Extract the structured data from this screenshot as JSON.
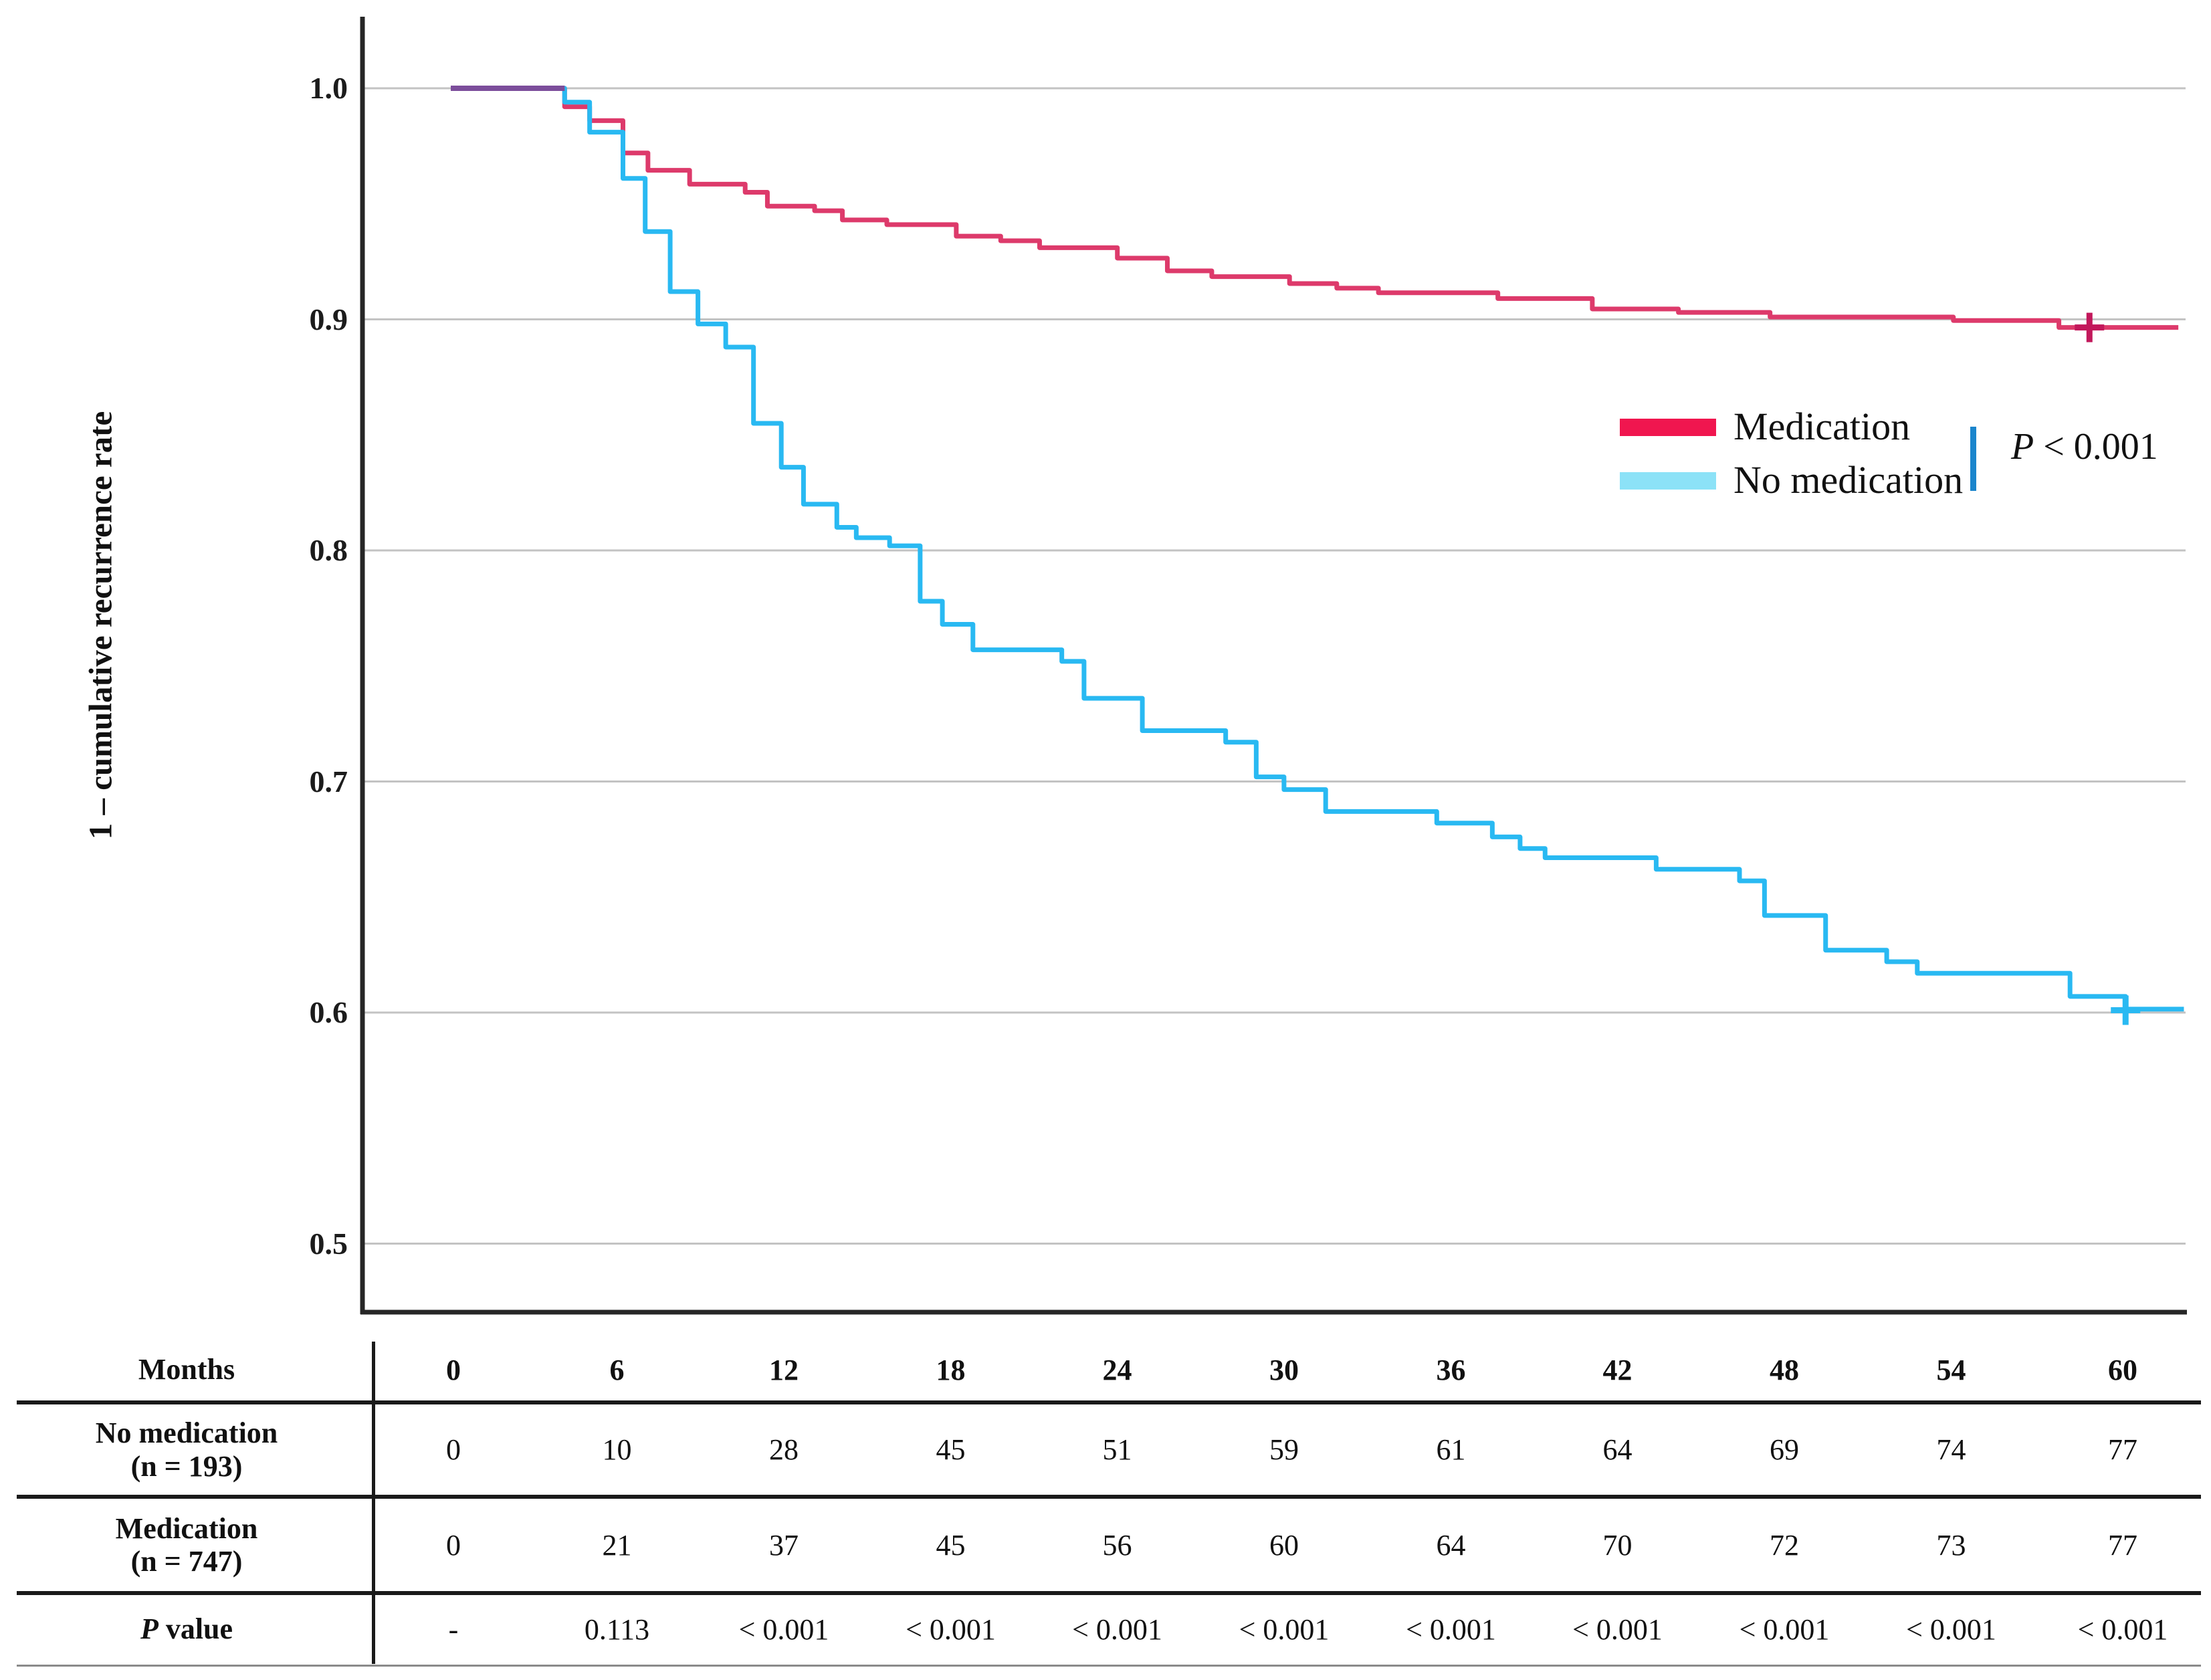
{
  "figure": {
    "y_axis_title": "1 – cumulative recurrence rate",
    "legend": {
      "items": [
        {
          "label": "Medication",
          "swatch_color": "#F0164F"
        },
        {
          "label": "No medication",
          "swatch_color": "#8CE2F7"
        }
      ],
      "bracket_color": "#1A85CC",
      "p_label": "P",
      "p_value": " < 0.001"
    }
  },
  "chart_data": {
    "type": "line",
    "subtype": "kaplan-meier-step",
    "title": "",
    "xlabel": "Months",
    "ylabel": "1 – cumulative recurrence rate",
    "xlim": [
      0,
      62.5
    ],
    "ylim": [
      0.45,
      1.02
    ],
    "yticks": [
      1.0,
      0.9,
      0.8,
      0.7,
      0.6,
      0.5
    ],
    "ytick_labels": [
      "1.0",
      "0.9",
      "0.8",
      "0.7",
      "0.6",
      "0.5"
    ],
    "xticks": [
      0,
      6,
      12,
      18,
      24,
      30,
      36,
      42,
      48,
      54,
      60
    ],
    "grid": "horizontal",
    "gridline_color": "#c3c3c3",
    "axis_color": "#262626",
    "legend_position": "right-middle",
    "p_annotation": "P < 0.001",
    "overlap_segment": {
      "color": "#7C4D9B",
      "from": [
        0,
        1.0
      ],
      "to": [
        4.1,
        1.0
      ]
    },
    "series": [
      {
        "name": "Medication",
        "color": "#DD3A6B",
        "end_month": 62.2,
        "censor_marks": [
          [
            59.0,
            0.8965
          ]
        ],
        "steps": [
          [
            0,
            1.0
          ],
          [
            4.1,
            0.992
          ],
          [
            5.0,
            0.986
          ],
          [
            6.2,
            0.972
          ],
          [
            7.1,
            0.9645
          ],
          [
            8.6,
            0.9585
          ],
          [
            10.6,
            0.955
          ],
          [
            11.4,
            0.949
          ],
          [
            13.1,
            0.947
          ],
          [
            14.1,
            0.943
          ],
          [
            15.7,
            0.941
          ],
          [
            18.2,
            0.936
          ],
          [
            19.8,
            0.934
          ],
          [
            21.2,
            0.931
          ],
          [
            24.0,
            0.9265
          ],
          [
            25.8,
            0.921
          ],
          [
            27.4,
            0.9185
          ],
          [
            30.2,
            0.9155
          ],
          [
            31.9,
            0.9135
          ],
          [
            33.4,
            0.9115
          ],
          [
            37.7,
            0.909
          ],
          [
            41.1,
            0.9045
          ],
          [
            44.2,
            0.903
          ],
          [
            47.5,
            0.901
          ],
          [
            54.1,
            0.8995
          ],
          [
            57.9,
            0.8965
          ]
        ]
      },
      {
        "name": "No medication",
        "color": "#29B9F2",
        "end_month": 62.4,
        "censor_marks": [
          [
            60.3,
            0.601
          ]
        ],
        "steps": [
          [
            0,
            1.0
          ],
          [
            4.1,
            0.994
          ],
          [
            5.0,
            0.981
          ],
          [
            6.2,
            0.961
          ],
          [
            7.0,
            0.938
          ],
          [
            7.9,
            0.912
          ],
          [
            8.9,
            0.898
          ],
          [
            9.9,
            0.888
          ],
          [
            10.9,
            0.855
          ],
          [
            11.9,
            0.836
          ],
          [
            12.7,
            0.82
          ],
          [
            13.9,
            0.81
          ],
          [
            14.6,
            0.8055
          ],
          [
            15.8,
            0.802
          ],
          [
            16.9,
            0.778
          ],
          [
            17.7,
            0.768
          ],
          [
            18.8,
            0.757
          ],
          [
            22.0,
            0.752
          ],
          [
            22.8,
            0.736
          ],
          [
            24.9,
            0.722
          ],
          [
            27.9,
            0.717
          ],
          [
            29.0,
            0.702
          ],
          [
            30.0,
            0.6965
          ],
          [
            31.5,
            0.687
          ],
          [
            35.5,
            0.682
          ],
          [
            37.5,
            0.676
          ],
          [
            38.5,
            0.671
          ],
          [
            39.4,
            0.667
          ],
          [
            43.4,
            0.662
          ],
          [
            46.4,
            0.657
          ],
          [
            47.3,
            0.642
          ],
          [
            49.5,
            0.627
          ],
          [
            51.7,
            0.622
          ],
          [
            52.8,
            0.617
          ],
          [
            58.3,
            0.607
          ],
          [
            60.3,
            0.6015
          ]
        ]
      }
    ]
  },
  "table": {
    "header_label": "Months",
    "columns": [
      "0",
      "6",
      "12",
      "18",
      "24",
      "30",
      "36",
      "42",
      "48",
      "54",
      "60"
    ],
    "rows": [
      {
        "label_lines": [
          "No medication",
          "(n = 193)"
        ],
        "pvalue_row": false,
        "values": [
          "0",
          "10",
          "28",
          "45",
          "51",
          "59",
          "61",
          "64",
          "69",
          "74",
          "77"
        ]
      },
      {
        "label_lines": [
          "Medication",
          "(n = 747)"
        ],
        "pvalue_row": false,
        "values": [
          "0",
          "21",
          "37",
          "45",
          "56",
          "60",
          "64",
          "70",
          "72",
          "73",
          "77"
        ]
      },
      {
        "label_lines": [
          "P value"
        ],
        "pvalue_row": true,
        "values": [
          "-",
          "0.113",
          "< 0.001",
          "< 0.001",
          "< 0.001",
          "< 0.001",
          "< 0.001",
          "< 0.001",
          "< 0.001",
          "< 0.001",
          "< 0.001"
        ]
      }
    ]
  }
}
